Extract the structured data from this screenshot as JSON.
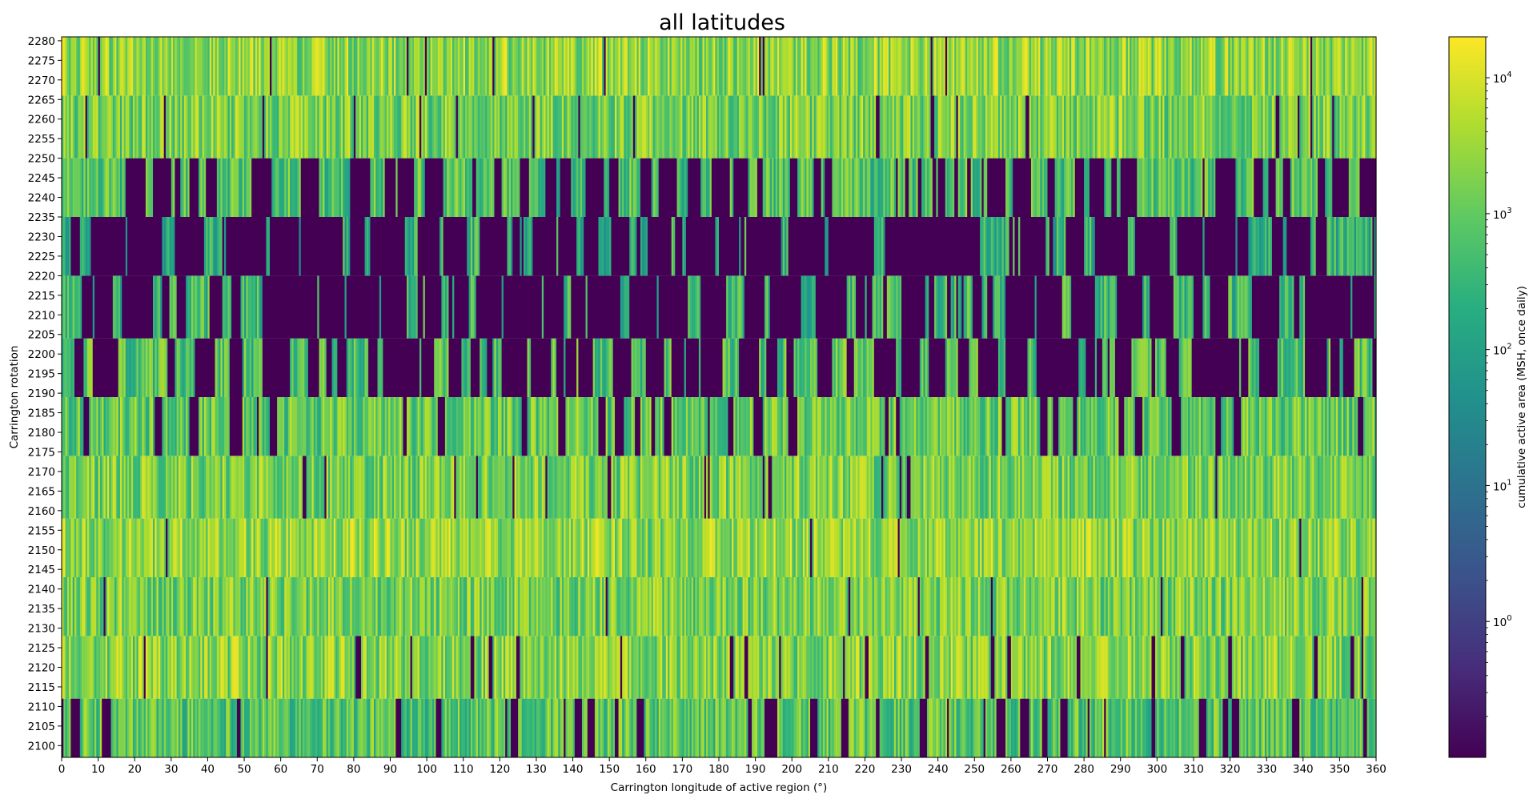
{
  "chart_data": {
    "type": "heatmap",
    "title": "all latitudes",
    "xlabel": "Carrington longitude of active region (°)",
    "ylabel": "Carrington rotation",
    "colorbar_label": "cumulative active area (MSH, once daily)",
    "colorbar_scale": "log",
    "colorbar_range": [
      0.1,
      20000
    ],
    "colorbar_ticks": [
      {
        "base": "10",
        "exp": "0",
        "value": 1
      },
      {
        "base": "10",
        "exp": "1",
        "value": 10
      },
      {
        "base": "10",
        "exp": "2",
        "value": 100
      },
      {
        "base": "10",
        "exp": "3",
        "value": 1000
      },
      {
        "base": "10",
        "exp": "4",
        "value": 10000
      }
    ],
    "colormap": "viridis",
    "xlim": [
      0,
      360
    ],
    "ylim": [
      2097,
      2281
    ],
    "x_ticks": [
      "0",
      "10",
      "20",
      "30",
      "40",
      "50",
      "60",
      "70",
      "80",
      "90",
      "100",
      "110",
      "120",
      "130",
      "140",
      "150",
      "160",
      "170",
      "180",
      "190",
      "200",
      "210",
      "220",
      "230",
      "240",
      "250",
      "260",
      "270",
      "280",
      "290",
      "300",
      "310",
      "320",
      "330",
      "340",
      "350",
      "360"
    ],
    "y_ticks": [
      "2100",
      "2105",
      "2110",
      "2115",
      "2120",
      "2125",
      "2130",
      "2135",
      "2140",
      "2145",
      "2150",
      "2155",
      "2160",
      "2165",
      "2170",
      "2175",
      "2180",
      "2185",
      "2190",
      "2195",
      "2200",
      "2205",
      "2210",
      "2215",
      "2220",
      "2225",
      "2230",
      "2235",
      "2240",
      "2245",
      "2250",
      "2255",
      "2260",
      "2265",
      "2270",
      "2275",
      "2280"
    ],
    "bands": [
      {
        "rows": "2097–2112",
        "y0": 2097,
        "y1": 2112,
        "mean_log10": 2.9,
        "empty_fraction": 0.18
      },
      {
        "rows": "2112–2128",
        "y0": 2112,
        "y1": 2128,
        "mean_log10": 3.3,
        "empty_fraction": 0.07
      },
      {
        "rows": "2128–2143",
        "y0": 2128,
        "y1": 2143,
        "mean_log10": 3.2,
        "empty_fraction": 0.03
      },
      {
        "rows": "2143–2158",
        "y0": 2143,
        "y1": 2158,
        "mean_log10": 3.4,
        "empty_fraction": 0.03
      },
      {
        "rows": "2158–2174",
        "y0": 2158,
        "y1": 2174,
        "mean_log10": 3.2,
        "empty_fraction": 0.05
      },
      {
        "rows": "2174–2189",
        "y0": 2174,
        "y1": 2189,
        "mean_log10": 3.0,
        "empty_fraction": 0.15
      },
      {
        "rows": "2189–2204",
        "y0": 2189,
        "y1": 2204,
        "mean_log10": 2.8,
        "empty_fraction": 0.45
      },
      {
        "rows": "2204–2220",
        "y0": 2204,
        "y1": 2220,
        "mean_log10": 2.6,
        "empty_fraction": 0.55
      },
      {
        "rows": "2220–2235",
        "y0": 2220,
        "y1": 2235,
        "mean_log10": 2.4,
        "empty_fraction": 0.68
      },
      {
        "rows": "2235–2250",
        "y0": 2235,
        "y1": 2250,
        "mean_log10": 2.8,
        "empty_fraction": 0.35
      },
      {
        "rows": "2250–2266",
        "y0": 2250,
        "y1": 2266,
        "mean_log10": 3.2,
        "empty_fraction": 0.06
      },
      {
        "rows": "2266–2281",
        "y0": 2266,
        "y1": 2281,
        "mean_log10": 3.4,
        "empty_fraction": 0.03
      }
    ]
  }
}
